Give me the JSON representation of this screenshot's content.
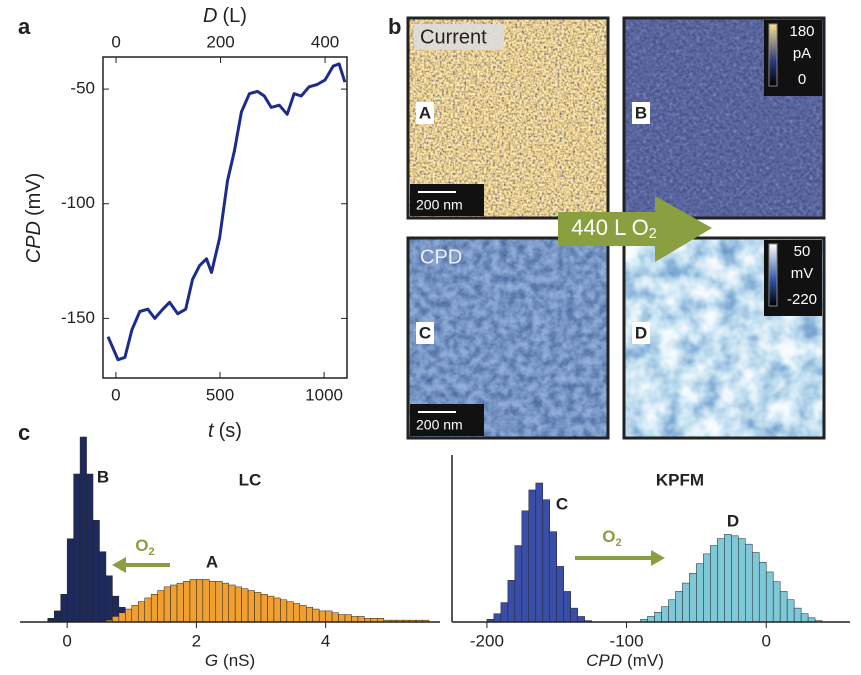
{
  "panel_labels": [
    "a",
    "b",
    "c"
  ],
  "chart_data": [
    {
      "type": "line",
      "x_label": {
        "symbol": "t",
        "unit": "(s)"
      },
      "x2_label": {
        "symbol": "D",
        "unit": "(L)"
      },
      "y_label": {
        "symbol": "CPD",
        "unit": "(mV)"
      },
      "x": [
        -38,
        -19,
        10,
        43,
        77,
        115,
        153,
        187,
        225,
        258,
        297,
        335,
        368,
        402,
        435,
        459,
        498,
        536,
        569,
        603,
        641,
        680,
        713,
        746,
        785,
        823,
        856,
        890,
        928,
        967,
        1005,
        1043,
        1072,
        1100
      ],
      "values": [
        -158,
        -162,
        -168,
        -167,
        -155,
        -147,
        -146,
        -150,
        -146,
        -143,
        -148,
        -146,
        -133,
        -127,
        -124,
        -130,
        -115,
        -90,
        -77,
        -60,
        -52,
        -51,
        -53,
        -58,
        -57,
        -61,
        -52,
        -53,
        -49,
        -48,
        -46,
        -40,
        -39,
        -47
      ],
      "color": "#1c2c8c",
      "xlim": [
        -62,
        1110
      ],
      "xticks": [
        0,
        500,
        1000
      ],
      "x2lim": [
        -25,
        442
      ],
      "x2ticks": [
        0,
        200,
        400
      ],
      "ylim": [
        -176,
        -36
      ],
      "yticks": [
        -150,
        -100,
        -50
      ]
    },
    {
      "type": "histogram",
      "title": "LC",
      "x_label": {
        "symbol": "G",
        "unit": "(nS)"
      },
      "xlim": [
        -0.73,
        5.77
      ],
      "xticks": [
        0,
        2,
        4
      ],
      "annotation": {
        "text": "O",
        "sub": "2"
      },
      "annotation_color": "#8aa040",
      "series": [
        {
          "name": "B",
          "color": "#1f2a5c",
          "bins": [
            -0.3,
            -0.2,
            -0.1,
            0,
            0.1,
            0.2,
            0.3,
            0.4,
            0.5,
            0.6,
            0.7,
            0.8,
            0.9,
            1.0,
            1.1,
            1.2
          ],
          "values": [
            2,
            6,
            15,
            45,
            80,
            100,
            80,
            55,
            38,
            25,
            14,
            8,
            4,
            2,
            1
          ]
        },
        {
          "name": "A",
          "color": "#f0a030",
          "bins": [
            0.6,
            0.7,
            0.8,
            0.9,
            1.0,
            1.1,
            1.2,
            1.3,
            1.4,
            1.5,
            1.6,
            1.7,
            1.8,
            1.9,
            2.0,
            2.1,
            2.2,
            2.3,
            2.4,
            2.5,
            2.6,
            2.7,
            2.8,
            2.9,
            3.0,
            3.1,
            3.2,
            3.3,
            3.4,
            3.5,
            3.6,
            3.7,
            3.8,
            3.9,
            4.0,
            4.1,
            4.2,
            4.3,
            4.4,
            4.5,
            4.6,
            4.7,
            4.8,
            4.9,
            5.0,
            5.1,
            5.2,
            5.3,
            5.4,
            5.5,
            5.6
          ],
          "values": [
            1,
            3,
            5,
            7,
            9,
            11,
            13,
            15,
            17,
            19,
            20,
            21,
            22,
            23,
            23,
            23,
            22,
            22,
            21,
            20,
            19,
            18,
            17,
            16,
            15,
            14,
            13,
            12,
            11,
            10,
            9,
            8,
            7,
            6,
            6,
            5,
            4,
            4,
            3,
            3,
            2,
            2,
            2,
            1,
            1,
            1,
            1,
            1,
            1,
            1
          ]
        }
      ]
    },
    {
      "type": "histogram",
      "title": "KPFM",
      "x_label": {
        "symbol": "CPD",
        "unit": "(mV)"
      },
      "xlim": [
        -225,
        60
      ],
      "xticks": [
        -200,
        -100,
        0
      ],
      "annotation": {
        "text": "O",
        "sub": "2"
      },
      "annotation_color": "#8aa040",
      "series": [
        {
          "name": "C",
          "color": "#3a4ea8",
          "bins": [
            -200,
            -195,
            -190,
            -185,
            -180,
            -175,
            -170,
            -165,
            -160,
            -155,
            -150,
            -145,
            -140,
            -135,
            -130,
            -125
          ],
          "values": [
            2,
            6,
            14,
            30,
            55,
            80,
            95,
            100,
            88,
            65,
            40,
            22,
            10,
            4,
            1
          ]
        },
        {
          "name": "D",
          "color": "#7ec8d8",
          "bins": [
            -90,
            -85,
            -80,
            -75,
            -70,
            -65,
            -60,
            -55,
            -50,
            -45,
            -40,
            -35,
            -30,
            -25,
            -20,
            -15,
            -10,
            -5,
            0,
            5,
            10,
            15,
            20,
            25,
            30,
            35,
            40
          ],
          "values": [
            2,
            4,
            7,
            11,
            16,
            22,
            28,
            35,
            42,
            49,
            55,
            60,
            63,
            62,
            60,
            56,
            50,
            43,
            36,
            29,
            22,
            16,
            10,
            6,
            3,
            1
          ]
        }
      ]
    }
  ],
  "images": [
    {
      "title": "Current",
      "label": "A",
      "scale_bar": "200 nm"
    },
    {
      "label": "B",
      "colorbar": {
        "max": 180,
        "unit": "pA",
        "min": 0
      }
    },
    {
      "title": "CPD",
      "label": "C",
      "scale_bar": "200 nm"
    },
    {
      "label": "D",
      "colorbar": {
        "max": 50,
        "unit": "mV",
        "min": -220
      }
    }
  ],
  "arrow": {
    "text": "440 L O",
    "sub": "2"
  }
}
